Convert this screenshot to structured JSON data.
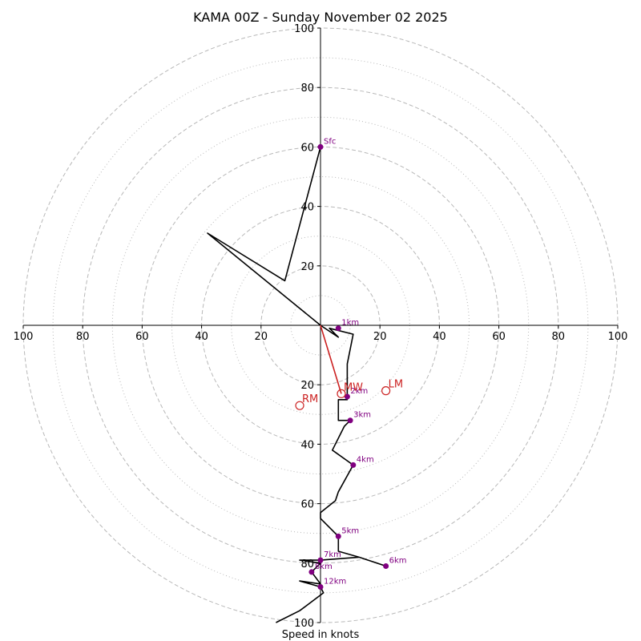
{
  "chart_data": {
    "type": "hodograph",
    "title": "KAMA 00Z - Sunday November 02 2025",
    "xlabel": "Speed in knots",
    "range": [
      -100,
      100
    ],
    "ring_major": [
      20,
      40,
      60,
      80,
      100
    ],
    "ring_minor": [
      10,
      30,
      50,
      70,
      90
    ],
    "tick_values": [
      20,
      40,
      60,
      80,
      100
    ],
    "tick_labels": {
      "left": [
        "20",
        "40",
        "60",
        "80",
        "100"
      ],
      "right": [
        "20",
        "40",
        "60",
        "80",
        "100"
      ],
      "up": [
        "20",
        "40",
        "60",
        "80",
        "100"
      ],
      "down": [
        "20",
        "40",
        "60",
        "80",
        "100"
      ]
    },
    "colors": {
      "trace": "#000000",
      "height_marker": "#800080",
      "motion": "#cc2222",
      "grid": "#b8b8b8"
    },
    "wind_trace": [
      [
        0,
        60
      ],
      [
        -12,
        15
      ],
      [
        -38,
        31
      ],
      [
        0,
        0
      ],
      [
        6,
        -4
      ],
      [
        3,
        -1
      ],
      [
        11,
        -3
      ],
      [
        9,
        -13
      ],
      [
        9,
        -25
      ],
      [
        6,
        -25
      ],
      [
        6,
        -32
      ],
      [
        10,
        -32
      ],
      [
        8,
        -34
      ],
      [
        4,
        -42
      ],
      [
        11,
        -47
      ],
      [
        6,
        -56
      ],
      [
        5,
        -59
      ],
      [
        0,
        -63
      ],
      [
        0,
        -65
      ],
      [
        6,
        -71
      ],
      [
        6,
        -76
      ],
      [
        13,
        -78
      ],
      [
        16,
        -79
      ],
      [
        19,
        -80
      ],
      [
        22,
        -81
      ],
      [
        13,
        -78
      ],
      [
        0,
        -79
      ],
      [
        -7,
        -79
      ],
      [
        0,
        -80
      ],
      [
        -3,
        -83
      ],
      [
        0,
        -87
      ],
      [
        -7,
        -86
      ],
      [
        0,
        -88
      ],
      [
        1,
        -90
      ],
      [
        -7,
        -96
      ],
      [
        -15,
        -100
      ]
    ],
    "height_markers": [
      {
        "label": "Sfc",
        "u": 0,
        "v": 60
      },
      {
        "label": "1km",
        "u": 6,
        "v": -1
      },
      {
        "label": "2km",
        "u": 9,
        "v": -24
      },
      {
        "label": "3km",
        "u": 10,
        "v": -32
      },
      {
        "label": "4km",
        "u": 11,
        "v": -47
      },
      {
        "label": "5km",
        "u": 6,
        "v": -71
      },
      {
        "label": "6km",
        "u": 22,
        "v": -81
      },
      {
        "label": "7km",
        "u": 0,
        "v": -79
      },
      {
        "label": "8km",
        "u": -3,
        "v": -83
      },
      {
        "label": "12km",
        "u": 0,
        "v": -88
      }
    ],
    "storm_motions": [
      {
        "label": "RM",
        "u": -7,
        "v": -27
      },
      {
        "label": "LM",
        "u": 22,
        "v": -22
      },
      {
        "label": "MW",
        "u": 7,
        "v": -23
      }
    ],
    "shear_vector": {
      "from": [
        0,
        0
      ],
      "to": [
        7,
        -23
      ]
    }
  }
}
